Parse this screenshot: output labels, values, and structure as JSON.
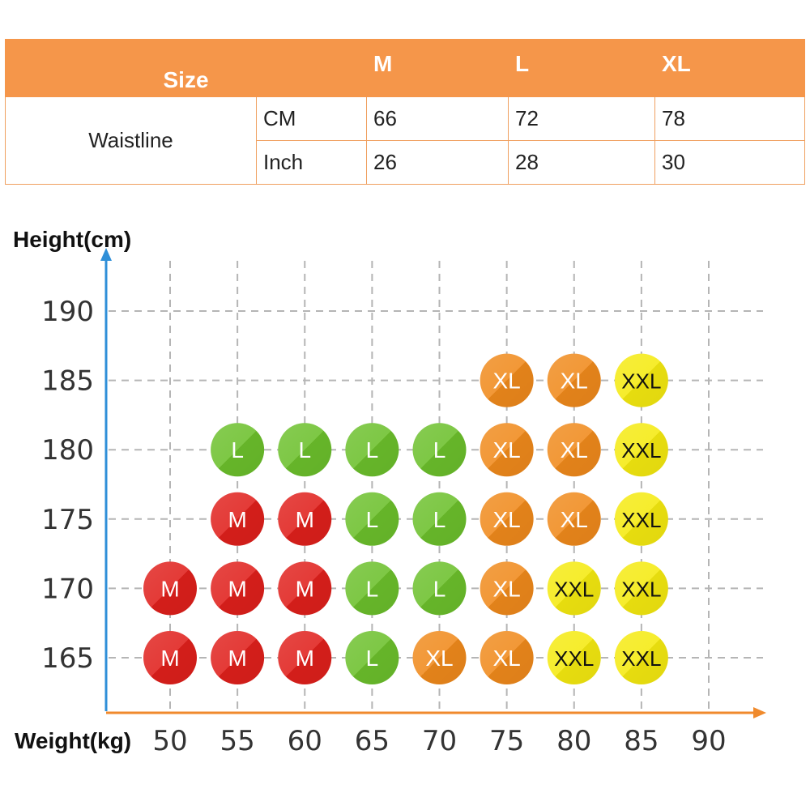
{
  "table": {
    "header": {
      "size_label": "Size",
      "columns": [
        "M",
        "L",
        "XL"
      ]
    },
    "row_label": "Waistline",
    "rows": [
      {
        "unit": "CM",
        "values": [
          "66",
          "72",
          "78"
        ]
      },
      {
        "unit": "Inch",
        "values": [
          "26",
          "28",
          "30"
        ]
      }
    ]
  },
  "chart_data": {
    "type": "scatter",
    "title": "",
    "xlabel": "Weight(kg)",
    "ylabel": "Height(cm)",
    "xlim": [
      50,
      90
    ],
    "ylim": [
      165,
      190
    ],
    "x_ticks": [
      "50",
      "55",
      "60",
      "65",
      "70",
      "75",
      "80",
      "85",
      "90"
    ],
    "y_ticks": [
      "190",
      "185",
      "180",
      "175",
      "170",
      "165"
    ],
    "grid": true,
    "colors": {
      "M": "#e0201c",
      "L": "#6cc02c",
      "XL": "#f08a1c",
      "XXL": "#f5ea10"
    },
    "label_colors": {
      "M": "#ffffff",
      "L": "#ffffff",
      "XL": "#ffffff",
      "XXL": "#111111"
    },
    "points": [
      {
        "weight": 75,
        "height": 185,
        "size": "XL"
      },
      {
        "weight": 80,
        "height": 185,
        "size": "XL"
      },
      {
        "weight": 85,
        "height": 185,
        "size": "XXL"
      },
      {
        "weight": 55,
        "height": 180,
        "size": "L"
      },
      {
        "weight": 60,
        "height": 180,
        "size": "L"
      },
      {
        "weight": 65,
        "height": 180,
        "size": "L"
      },
      {
        "weight": 70,
        "height": 180,
        "size": "L"
      },
      {
        "weight": 75,
        "height": 180,
        "size": "XL"
      },
      {
        "weight": 80,
        "height": 180,
        "size": "XL"
      },
      {
        "weight": 85,
        "height": 180,
        "size": "XXL"
      },
      {
        "weight": 55,
        "height": 175,
        "size": "M"
      },
      {
        "weight": 60,
        "height": 175,
        "size": "M"
      },
      {
        "weight": 65,
        "height": 175,
        "size": "L"
      },
      {
        "weight": 70,
        "height": 175,
        "size": "L"
      },
      {
        "weight": 75,
        "height": 175,
        "size": "XL"
      },
      {
        "weight": 80,
        "height": 175,
        "size": "XL"
      },
      {
        "weight": 85,
        "height": 175,
        "size": "XXL"
      },
      {
        "weight": 50,
        "height": 170,
        "size": "M"
      },
      {
        "weight": 55,
        "height": 170,
        "size": "M"
      },
      {
        "weight": 60,
        "height": 170,
        "size": "M"
      },
      {
        "weight": 65,
        "height": 170,
        "size": "L"
      },
      {
        "weight": 70,
        "height": 170,
        "size": "L"
      },
      {
        "weight": 75,
        "height": 170,
        "size": "XL"
      },
      {
        "weight": 80,
        "height": 170,
        "size": "XXL"
      },
      {
        "weight": 85,
        "height": 170,
        "size": "XXL"
      },
      {
        "weight": 50,
        "height": 165,
        "size": "M"
      },
      {
        "weight": 55,
        "height": 165,
        "size": "M"
      },
      {
        "weight": 60,
        "height": 165,
        "size": "M"
      },
      {
        "weight": 65,
        "height": 165,
        "size": "L"
      },
      {
        "weight": 70,
        "height": 165,
        "size": "XL"
      },
      {
        "weight": 75,
        "height": 165,
        "size": "XL"
      },
      {
        "weight": 80,
        "height": 165,
        "size": "XXL"
      },
      {
        "weight": 85,
        "height": 165,
        "size": "XXL"
      }
    ]
  }
}
